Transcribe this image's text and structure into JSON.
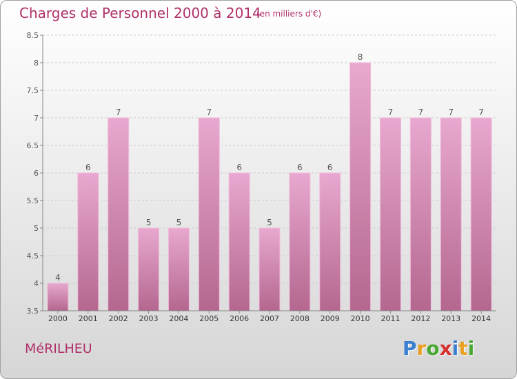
{
  "header": {
    "title": "Charges de Personnel 2000 à 2014",
    "subtitle": "(en milliers d'€)"
  },
  "footer": {
    "town": "MéRILHEU",
    "logo": {
      "letters": [
        {
          "char": "P",
          "color": "#3a7fd0"
        },
        {
          "char": "r",
          "color": "#e8a020"
        },
        {
          "char": "o",
          "color": "#4aa832"
        },
        {
          "char": "x",
          "color": "#d83030"
        },
        {
          "char": "i",
          "color": "#3a7fd0"
        },
        {
          "char": "t",
          "color": "#e8a020"
        },
        {
          "char": "i",
          "color": "#4aa832"
        }
      ]
    }
  },
  "colors": {
    "title": "#b0306a",
    "bar_top": "#e8a8cf",
    "bar_bottom": "#b4678f",
    "bar_edge": "#f0bcdc",
    "axis": "#888888",
    "grid": "#cccccc"
  },
  "chart_data": {
    "type": "bar",
    "title": "Charges de Personnel 2000 à 2014",
    "subtitle": "(en milliers d'€)",
    "categories": [
      "2000",
      "2001",
      "2002",
      "2003",
      "2004",
      "2005",
      "2006",
      "2007",
      "2008",
      "2009",
      "2010",
      "2011",
      "2012",
      "2013",
      "2014"
    ],
    "values": [
      4,
      6,
      7,
      5,
      5,
      7,
      6,
      5,
      6,
      6,
      8,
      7,
      7,
      7,
      7
    ],
    "data_labels": [
      "4",
      "6",
      "7",
      "5",
      "5",
      "7",
      "6",
      "5",
      "6",
      "6",
      "8",
      "7",
      "7",
      "7",
      "7"
    ],
    "ylim": [
      3.5,
      8.5
    ],
    "yticks": [
      "3.5",
      "4",
      "4.5",
      "5",
      "5.5",
      "6",
      "6.5",
      "7",
      "7.5",
      "8",
      "8.5"
    ],
    "grid": "horizontal dashed",
    "legend": "none"
  }
}
